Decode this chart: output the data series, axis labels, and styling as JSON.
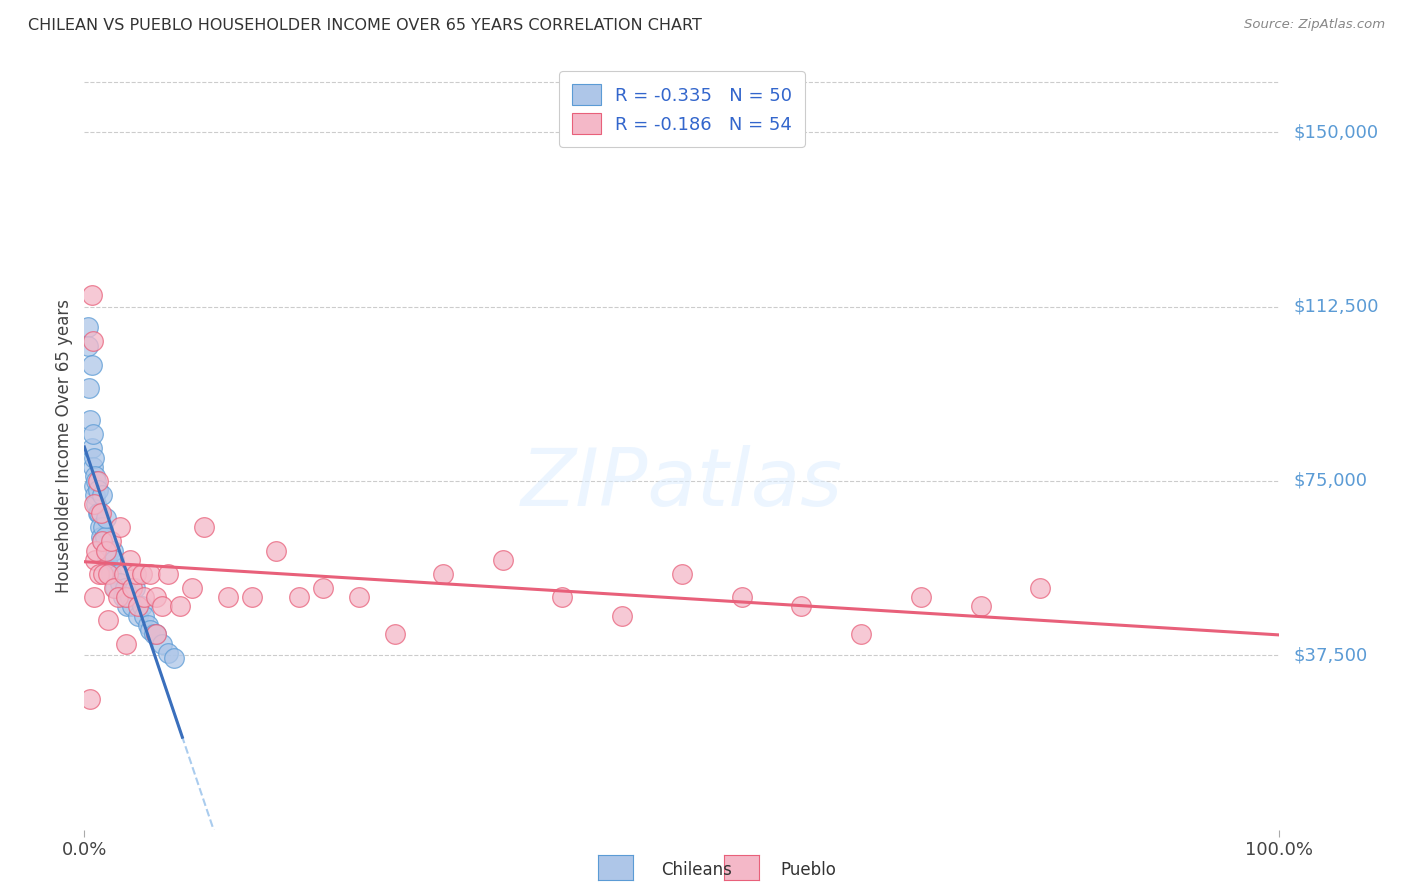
{
  "title": "CHILEAN VS PUEBLO HOUSEHOLDER INCOME OVER 65 YEARS CORRELATION CHART",
  "source": "Source: ZipAtlas.com",
  "ylabel": "Householder Income Over 65 years",
  "background_color": "#ffffff",
  "grid_color": "#cccccc",
  "chilean_fill": "#aec6e8",
  "chilean_edge": "#5b9bd5",
  "pueblo_fill": "#f4b8c8",
  "pueblo_edge": "#e8607a",
  "chilean_line_color": "#3a6fbc",
  "pueblo_line_color": "#e8607a",
  "dashed_line_color": "#aaccee",
  "title_color": "#333333",
  "source_color": "#888888",
  "legend_color": "#3366cc",
  "chilean_R": -0.335,
  "chilean_N": 50,
  "pueblo_R": -0.186,
  "pueblo_N": 54,
  "ytick_labels": [
    "$37,500",
    "$75,000",
    "$112,500",
    "$150,000"
  ],
  "ytick_values": [
    37500,
    75000,
    112500,
    150000
  ],
  "ylim": [
    0,
    165000
  ],
  "xlim": [
    0.0,
    1.0
  ],
  "chilean_x": [
    0.003,
    0.003,
    0.004,
    0.005,
    0.006,
    0.006,
    0.007,
    0.007,
    0.008,
    0.008,
    0.009,
    0.009,
    0.01,
    0.01,
    0.011,
    0.011,
    0.012,
    0.013,
    0.014,
    0.015,
    0.015,
    0.016,
    0.017,
    0.018,
    0.018,
    0.019,
    0.02,
    0.021,
    0.022,
    0.024,
    0.025,
    0.026,
    0.028,
    0.03,
    0.032,
    0.034,
    0.036,
    0.038,
    0.04,
    0.042,
    0.045,
    0.048,
    0.05,
    0.053,
    0.055,
    0.058,
    0.06,
    0.065,
    0.07,
    0.075
  ],
  "chilean_y": [
    108000,
    104000,
    95000,
    88000,
    82000,
    100000,
    78000,
    85000,
    74000,
    80000,
    72000,
    76000,
    70000,
    75000,
    68000,
    73000,
    68000,
    65000,
    63000,
    62000,
    72000,
    65000,
    63000,
    60000,
    67000,
    58000,
    57000,
    60000,
    55000,
    60000,
    58000,
    52000,
    55000,
    53000,
    50000,
    52000,
    48000,
    50000,
    48000,
    52000,
    46000,
    48000,
    46000,
    44000,
    43000,
    42000,
    42000,
    40000,
    38000,
    37000
  ],
  "pueblo_x": [
    0.005,
    0.006,
    0.007,
    0.008,
    0.009,
    0.01,
    0.011,
    0.012,
    0.014,
    0.015,
    0.016,
    0.018,
    0.02,
    0.022,
    0.025,
    0.028,
    0.03,
    0.033,
    0.035,
    0.038,
    0.04,
    0.043,
    0.045,
    0.048,
    0.05,
    0.055,
    0.06,
    0.065,
    0.07,
    0.08,
    0.09,
    0.1,
    0.12,
    0.14,
    0.16,
    0.18,
    0.2,
    0.23,
    0.26,
    0.3,
    0.35,
    0.4,
    0.45,
    0.5,
    0.55,
    0.6,
    0.65,
    0.7,
    0.75,
    0.8,
    0.008,
    0.02,
    0.035,
    0.06
  ],
  "pueblo_y": [
    28000,
    115000,
    105000,
    70000,
    58000,
    60000,
    75000,
    55000,
    68000,
    62000,
    55000,
    60000,
    55000,
    62000,
    52000,
    50000,
    65000,
    55000,
    50000,
    58000,
    52000,
    55000,
    48000,
    55000,
    50000,
    55000,
    50000,
    48000,
    55000,
    48000,
    52000,
    65000,
    50000,
    50000,
    60000,
    50000,
    52000,
    50000,
    42000,
    55000,
    58000,
    50000,
    46000,
    55000,
    50000,
    48000,
    42000,
    50000,
    48000,
    52000,
    50000,
    45000,
    40000,
    42000
  ]
}
